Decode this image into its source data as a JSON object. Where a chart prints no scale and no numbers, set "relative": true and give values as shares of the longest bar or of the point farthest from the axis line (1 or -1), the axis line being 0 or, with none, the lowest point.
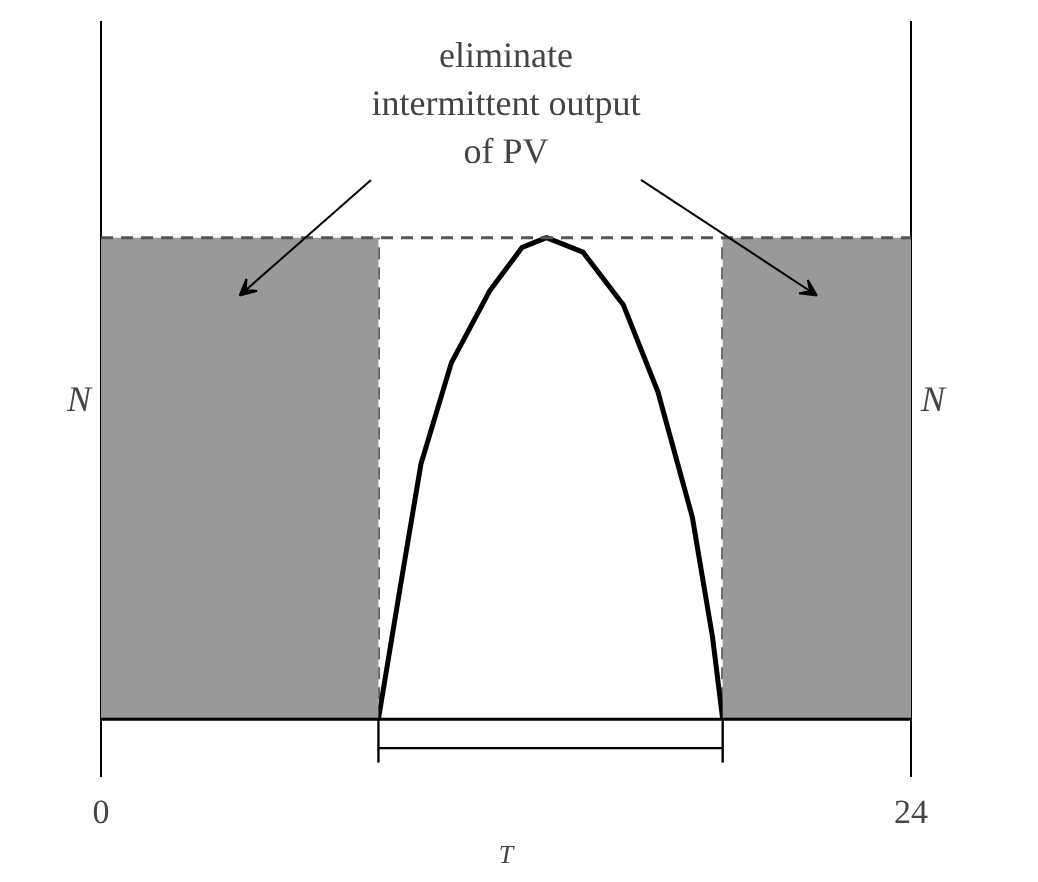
{
  "chart_data": {
    "type": "line",
    "relative": true,
    "x": [
      8.22,
      8.88,
      9.48,
      10.38,
      11.52,
      12.48,
      13.2,
      14.28,
      15.48,
      16.5,
      17.52,
      18.12,
      18.42
    ],
    "values": [
      0,
      0.28,
      0.53,
      0.74,
      0.89,
      0.98,
      1.0,
      0.97,
      0.86,
      0.68,
      0.42,
      0.17,
      0
    ],
    "color": "#000000",
    "xlim": [
      0,
      24
    ],
    "xticks": [
      0,
      24
    ],
    "xlabel": "T",
    "ylabel": "N",
    "y2label": "N",
    "tick_labels": "x",
    "bands": [
      {
        "axis": "x",
        "from": 0,
        "to": 8.22,
        "color": "#999999"
      },
      {
        "axis": "x",
        "from": 18.42,
        "to": 24,
        "color": "#999999"
      }
    ],
    "ref_lines": [
      {
        "axis": "y",
        "value": 1,
        "line_style": "dashed",
        "color": "#555555"
      },
      {
        "axis": "x",
        "value": 8.22,
        "line_style": "dashed",
        "color": "#555555"
      },
      {
        "axis": "x",
        "value": 18.42,
        "line_style": "dashed",
        "color": "#555555"
      }
    ],
    "annotations": [
      "eliminate intermittent output of PV"
    ]
  }
}
